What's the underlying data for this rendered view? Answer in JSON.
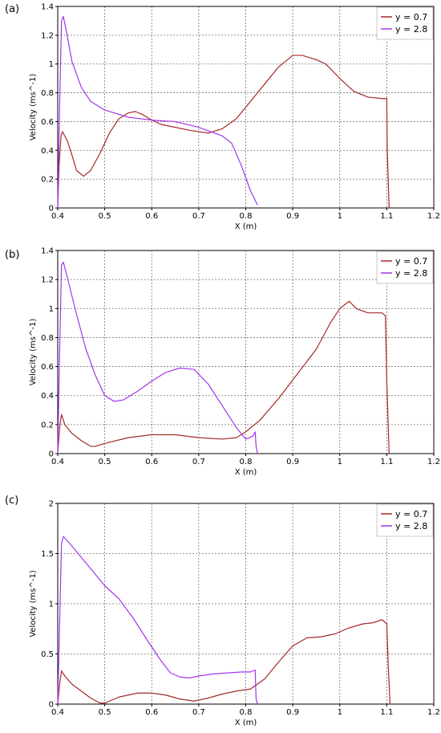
{
  "chart_data": [
    {
      "type": "line",
      "panel_label": "(a)",
      "xlabel": "X (m)",
      "ylabel": "Velocity (ms^-1)",
      "xlim": [
        0.4,
        1.2
      ],
      "ylim": [
        0,
        1.4
      ],
      "x_ticks": [
        0.4,
        0.5,
        0.6,
        0.7,
        0.8,
        0.9,
        1.0,
        1.1,
        1.2
      ],
      "x_tick_labels": [
        "0.4",
        "0.5",
        "0.6",
        "0.7",
        "0.8",
        "0.9",
        "1",
        "1.1",
        "1.2"
      ],
      "y_ticks": [
        0,
        0.2,
        0.4,
        0.6,
        0.8,
        1.0,
        1.2,
        1.4
      ],
      "y_tick_labels": [
        "0",
        "0.2",
        "0.4",
        "0.6",
        "0.8",
        "1",
        "1.2",
        "1.4"
      ],
      "legend_position": "top-right",
      "grid": true,
      "series": [
        {
          "name": "y = 0.7",
          "color": "#a52a2a",
          "points": [
            [
              0.4,
              0
            ],
            [
              0.403,
              0.3
            ],
            [
              0.407,
              0.5
            ],
            [
              0.41,
              0.53
            ],
            [
              0.42,
              0.47
            ],
            [
              0.43,
              0.37
            ],
            [
              0.44,
              0.26
            ],
            [
              0.455,
              0.22
            ],
            [
              0.47,
              0.26
            ],
            [
              0.49,
              0.38
            ],
            [
              0.51,
              0.52
            ],
            [
              0.53,
              0.62
            ],
            [
              0.55,
              0.66
            ],
            [
              0.565,
              0.67
            ],
            [
              0.58,
              0.65
            ],
            [
              0.6,
              0.61
            ],
            [
              0.62,
              0.58
            ],
            [
              0.65,
              0.56
            ],
            [
              0.68,
              0.54
            ],
            [
              0.72,
              0.52
            ],
            [
              0.75,
              0.55
            ],
            [
              0.78,
              0.62
            ],
            [
              0.81,
              0.74
            ],
            [
              0.84,
              0.86
            ],
            [
              0.87,
              0.98
            ],
            [
              0.9,
              1.06
            ],
            [
              0.92,
              1.06
            ],
            [
              0.95,
              1.03
            ],
            [
              0.97,
              1.0
            ],
            [
              1.0,
              0.9
            ],
            [
              1.03,
              0.81
            ],
            [
              1.06,
              0.77
            ],
            [
              1.09,
              0.76
            ],
            [
              1.1,
              0.76
            ],
            [
              1.101,
              0.4
            ],
            [
              1.105,
              0
            ]
          ]
        },
        {
          "name": "y = 2.8",
          "color": "#a335ee",
          "points": [
            [
              0.4,
              0
            ],
            [
              0.404,
              0.7
            ],
            [
              0.408,
              1.3
            ],
            [
              0.412,
              1.33
            ],
            [
              0.42,
              1.2
            ],
            [
              0.43,
              1.02
            ],
            [
              0.45,
              0.84
            ],
            [
              0.47,
              0.74
            ],
            [
              0.5,
              0.68
            ],
            [
              0.55,
              0.63
            ],
            [
              0.6,
              0.61
            ],
            [
              0.65,
              0.6
            ],
            [
              0.7,
              0.56
            ],
            [
              0.75,
              0.5
            ],
            [
              0.77,
              0.45
            ],
            [
              0.79,
              0.3
            ],
            [
              0.81,
              0.12
            ],
            [
              0.825,
              0.02
            ]
          ]
        }
      ]
    },
    {
      "type": "line",
      "panel_label": "(b)",
      "xlabel": "X (m)",
      "ylabel": "Velocity (ms^-1)",
      "xlim": [
        0.4,
        1.2
      ],
      "ylim": [
        0,
        1.4
      ],
      "x_ticks": [
        0.4,
        0.5,
        0.6,
        0.7,
        0.8,
        0.9,
        1.0,
        1.1,
        1.2
      ],
      "x_tick_labels": [
        "0.4",
        "0.5",
        "0.6",
        "0.7",
        "0.8",
        "0.9",
        "1",
        "1.1",
        "1.2"
      ],
      "y_ticks": [
        0,
        0.2,
        0.4,
        0.6,
        0.8,
        1.0,
        1.2,
        1.4
      ],
      "y_tick_labels": [
        "0",
        "0.2",
        "0.4",
        "0.6",
        "0.8",
        "1",
        "1.2",
        "1.4"
      ],
      "legend_position": "top-right",
      "grid": true,
      "series": [
        {
          "name": "y = 0.7",
          "color": "#a52a2a",
          "points": [
            [
              0.4,
              0
            ],
            [
              0.404,
              0.18
            ],
            [
              0.408,
              0.27
            ],
            [
              0.415,
              0.2
            ],
            [
              0.43,
              0.14
            ],
            [
              0.45,
              0.09
            ],
            [
              0.47,
              0.05
            ],
            [
              0.48,
              0.05
            ],
            [
              0.5,
              0.07
            ],
            [
              0.55,
              0.11
            ],
            [
              0.6,
              0.13
            ],
            [
              0.65,
              0.13
            ],
            [
              0.7,
              0.11
            ],
            [
              0.75,
              0.1
            ],
            [
              0.78,
              0.11
            ],
            [
              0.8,
              0.15
            ],
            [
              0.83,
              0.23
            ],
            [
              0.87,
              0.38
            ],
            [
              0.91,
              0.55
            ],
            [
              0.95,
              0.72
            ],
            [
              0.98,
              0.9
            ],
            [
              1.0,
              1.0
            ],
            [
              1.02,
              1.05
            ],
            [
              1.035,
              1.0
            ],
            [
              1.06,
              0.97
            ],
            [
              1.09,
              0.97
            ],
            [
              1.097,
              0.95
            ],
            [
              1.1,
              0.5
            ],
            [
              1.105,
              0
            ]
          ]
        },
        {
          "name": "y = 2.8",
          "color": "#a335ee",
          "points": [
            [
              0.4,
              0
            ],
            [
              0.404,
              0.7
            ],
            [
              0.408,
              1.3
            ],
            [
              0.412,
              1.32
            ],
            [
              0.42,
              1.22
            ],
            [
              0.44,
              0.96
            ],
            [
              0.46,
              0.72
            ],
            [
              0.48,
              0.54
            ],
            [
              0.5,
              0.4
            ],
            [
              0.52,
              0.36
            ],
            [
              0.54,
              0.37
            ],
            [
              0.57,
              0.43
            ],
            [
              0.6,
              0.5
            ],
            [
              0.63,
              0.56
            ],
            [
              0.66,
              0.59
            ],
            [
              0.69,
              0.58
            ],
            [
              0.72,
              0.48
            ],
            [
              0.75,
              0.33
            ],
            [
              0.78,
              0.18
            ],
            [
              0.8,
              0.1
            ],
            [
              0.815,
              0.12
            ],
            [
              0.82,
              0.15
            ],
            [
              0.822,
              0.05
            ],
            [
              0.825,
              0
            ]
          ]
        }
      ]
    },
    {
      "type": "line",
      "panel_label": "(c)",
      "xlabel": "X (m)",
      "ylabel": "Velocity (ms^-1)",
      "xlim": [
        0.4,
        1.2
      ],
      "ylim": [
        0,
        2
      ],
      "x_ticks": [
        0.4,
        0.5,
        0.6,
        0.7,
        0.8,
        0.9,
        1.0,
        1.1,
        1.2
      ],
      "x_tick_labels": [
        "0.4",
        "0.5",
        "0.6",
        "0.7",
        "0.8",
        "0.9",
        "1",
        "1.1",
        "1.2"
      ],
      "y_ticks": [
        0,
        0.5,
        1.0,
        1.5,
        2.0
      ],
      "y_tick_labels": [
        "0",
        "0.5",
        "1",
        "1.5",
        "2"
      ],
      "legend_position": "top-right",
      "grid": true,
      "series": [
        {
          "name": "y = 0.7",
          "color": "#a52a2a",
          "points": [
            [
              0.4,
              0
            ],
            [
              0.404,
              0.2
            ],
            [
              0.408,
              0.33
            ],
            [
              0.415,
              0.28
            ],
            [
              0.43,
              0.2
            ],
            [
              0.45,
              0.13
            ],
            [
              0.47,
              0.06
            ],
            [
              0.49,
              0.01
            ],
            [
              0.5,
              0.01
            ],
            [
              0.53,
              0.07
            ],
            [
              0.57,
              0.11
            ],
            [
              0.6,
              0.11
            ],
            [
              0.63,
              0.09
            ],
            [
              0.66,
              0.05
            ],
            [
              0.69,
              0.03
            ],
            [
              0.72,
              0.06
            ],
            [
              0.75,
              0.1
            ],
            [
              0.78,
              0.13
            ],
            [
              0.81,
              0.15
            ],
            [
              0.84,
              0.25
            ],
            [
              0.87,
              0.42
            ],
            [
              0.9,
              0.58
            ],
            [
              0.93,
              0.66
            ],
            [
              0.96,
              0.67
            ],
            [
              0.99,
              0.7
            ],
            [
              1.02,
              0.76
            ],
            [
              1.05,
              0.8
            ],
            [
              1.07,
              0.81
            ],
            [
              1.09,
              0.84
            ],
            [
              1.1,
              0.8
            ],
            [
              1.103,
              0.4
            ],
            [
              1.107,
              0
            ]
          ]
        },
        {
          "name": "y = 2.8",
          "color": "#a335ee",
          "points": [
            [
              0.4,
              0
            ],
            [
              0.404,
              0.8
            ],
            [
              0.408,
              1.6
            ],
            [
              0.412,
              1.67
            ],
            [
              0.42,
              1.63
            ],
            [
              0.44,
              1.52
            ],
            [
              0.47,
              1.35
            ],
            [
              0.5,
              1.18
            ],
            [
              0.53,
              1.05
            ],
            [
              0.56,
              0.86
            ],
            [
              0.59,
              0.64
            ],
            [
              0.62,
              0.43
            ],
            [
              0.64,
              0.31
            ],
            [
              0.66,
              0.27
            ],
            [
              0.68,
              0.26
            ],
            [
              0.7,
              0.28
            ],
            [
              0.73,
              0.3
            ],
            [
              0.76,
              0.31
            ],
            [
              0.79,
              0.32
            ],
            [
              0.81,
              0.32
            ],
            [
              0.82,
              0.34
            ],
            [
              0.822,
              0.05
            ],
            [
              0.825,
              0
            ]
          ]
        }
      ]
    }
  ]
}
